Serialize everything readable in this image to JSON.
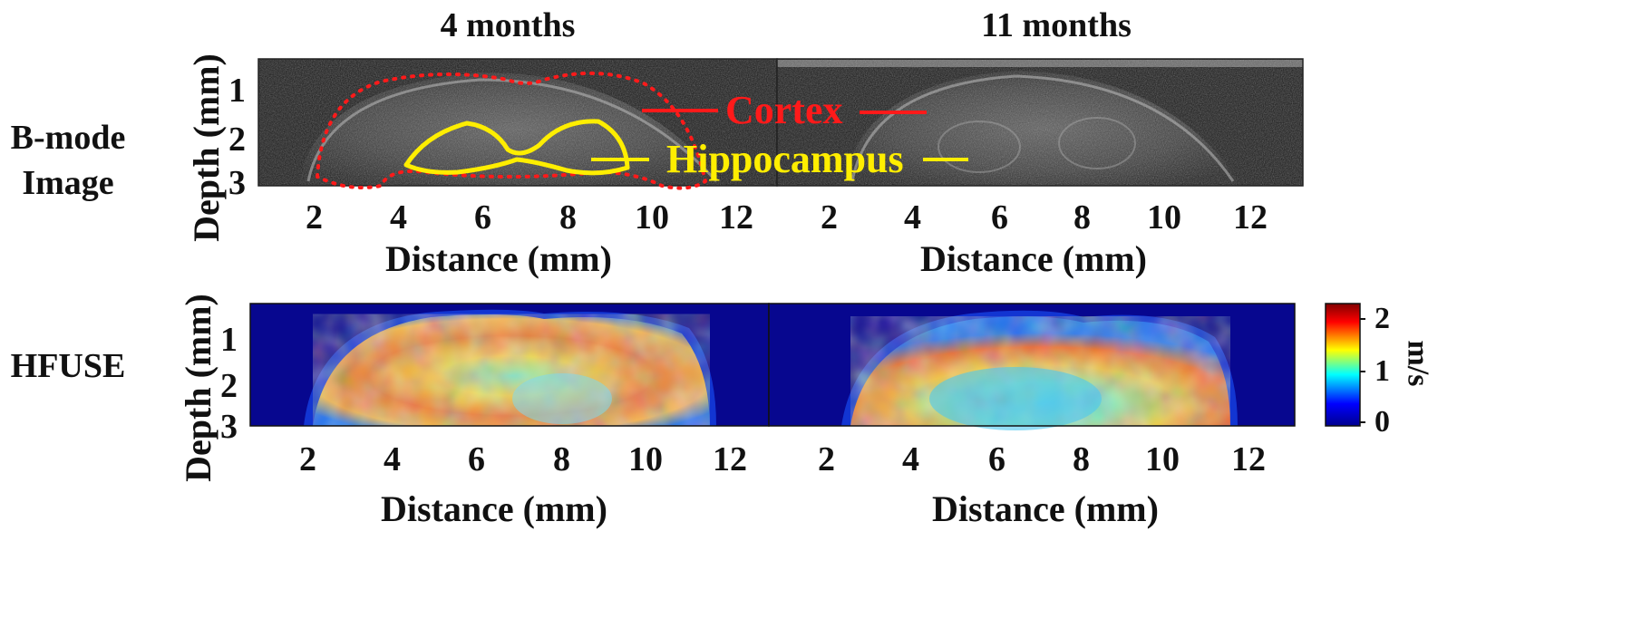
{
  "columns": {
    "left_title": "4 months",
    "right_title": "11 months"
  },
  "rows": {
    "top_label_line1": "B-mode",
    "top_label_line2": "Image",
    "bottom_label": "HFUSE"
  },
  "axes": {
    "xlabel": "Distance (mm)",
    "ylabel": "Depth (mm)",
    "x_ticks": [
      "2",
      "4",
      "6",
      "8",
      "10",
      "12"
    ],
    "y_ticks": [
      "1",
      "2",
      "3"
    ]
  },
  "annotations": {
    "cortex": {
      "label": "Cortex",
      "color": "#ff1a1a"
    },
    "hippocampus": {
      "label": "Hippocampus",
      "color": "#ffee00"
    }
  },
  "colorbar": {
    "unit": "m/s",
    "ticks": [
      "2",
      "1",
      "0"
    ],
    "colors": [
      "#00008f",
      "#0000ff",
      "#00ffff",
      "#ffff00",
      "#ff0000",
      "#800000"
    ]
  }
}
